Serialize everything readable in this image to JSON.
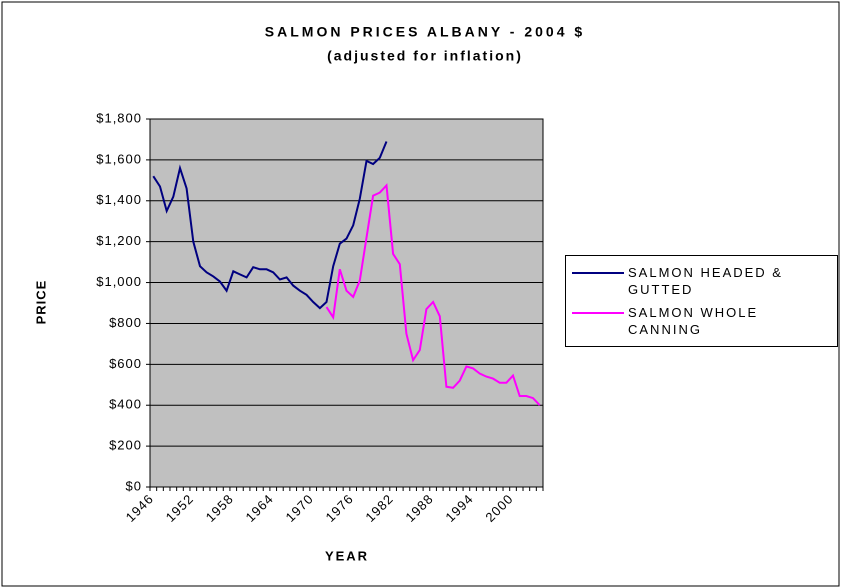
{
  "chart_data": {
    "type": "line",
    "title": "SALMON PRICES ALBANY - 2004 $",
    "subtitle": "(adjusted for inflation)",
    "x_label": "YEAR",
    "y_label": "PRICE",
    "categories": [
      "1946",
      null,
      null,
      null,
      null,
      null,
      "1952",
      null,
      null,
      null,
      null,
      null,
      "1958",
      null,
      null,
      null,
      null,
      null,
      "1964",
      null,
      null,
      null,
      null,
      null,
      "1970",
      null,
      null,
      null,
      null,
      null,
      "1976",
      null,
      null,
      null,
      null,
      null,
      "1982",
      null,
      null,
      null,
      null,
      null,
      "1988",
      null,
      null,
      null,
      null,
      null,
      "1994",
      null,
      null,
      null,
      null,
      null,
      "2000",
      null,
      null,
      null,
      null
    ],
    "series": [
      {
        "name": "SALMON HEADED & GUTTED",
        "color": "#000080",
        "values": [
          1520,
          1470,
          1350,
          1420,
          1560,
          1460,
          1200,
          1080,
          1050,
          1030,
          1005,
          960,
          1055,
          1040,
          1025,
          1075,
          1065,
          1065,
          1050,
          1015,
          1025,
          985,
          960,
          940,
          905,
          875,
          905,
          1080,
          1190,
          1215,
          1280,
          1410,
          1595,
          1580,
          1610,
          1690,
          null,
          null,
          null,
          null,
          null,
          null,
          null,
          null,
          null,
          null,
          null,
          null,
          null,
          null,
          null,
          null,
          null,
          null,
          null,
          null,
          null,
          null,
          null
        ]
      },
      {
        "name": "SALMON WHOLE CANNING",
        "color": "#ff00ff",
        "values": [
          null,
          null,
          null,
          null,
          null,
          null,
          null,
          null,
          null,
          null,
          null,
          null,
          null,
          null,
          null,
          null,
          null,
          null,
          null,
          null,
          null,
          null,
          null,
          null,
          null,
          null,
          880,
          830,
          1065,
          960,
          930,
          1010,
          1220,
          1425,
          1440,
          1475,
          1140,
          1090,
          750,
          620,
          670,
          870,
          905,
          835,
          490,
          485,
          520,
          590,
          580,
          555,
          540,
          530,
          510,
          510,
          545,
          445,
          445,
          435,
          400
        ]
      }
    ],
    "ylim": [
      0,
      1800
    ],
    "yticks": [
      {
        "value": 0,
        "label": "$0"
      },
      {
        "value": 200,
        "label": "$200"
      },
      {
        "value": 400,
        "label": "$400"
      },
      {
        "value": 600,
        "label": "$600"
      },
      {
        "value": 800,
        "label": "$800"
      },
      {
        "value": 1000,
        "label": "$1,000"
      },
      {
        "value": 1200,
        "label": "$1,200"
      },
      {
        "value": 1400,
        "label": "$1,400"
      },
      {
        "value": 1600,
        "label": "$1,600"
      },
      {
        "value": 1800,
        "label": "$1,800"
      }
    ],
    "grid": true,
    "plot_background": "#c0c0c0",
    "legend": "right"
  }
}
